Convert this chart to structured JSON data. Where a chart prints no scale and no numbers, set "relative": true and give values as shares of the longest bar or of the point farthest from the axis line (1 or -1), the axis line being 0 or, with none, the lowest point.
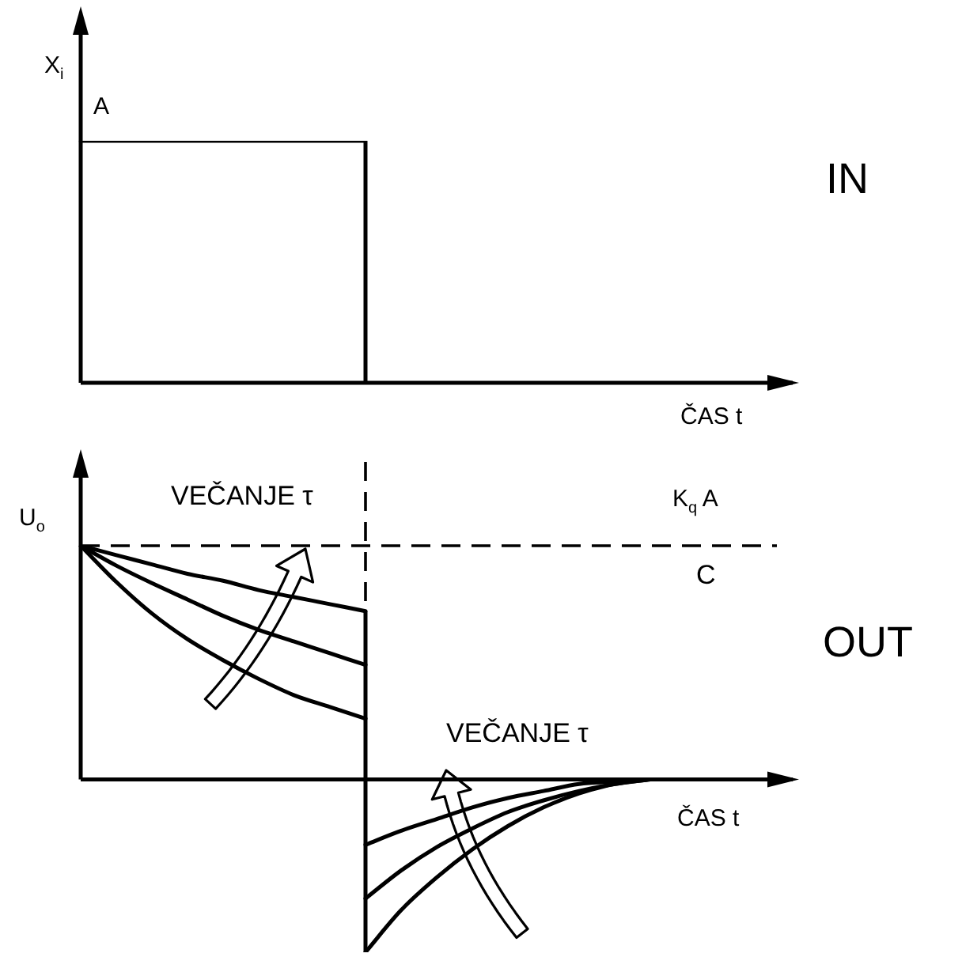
{
  "chart_data": [
    {
      "type": "step",
      "xlabel": "ČAS t",
      "ylabel": "X$_{i}$",
      "relative": true,
      "marker": "none",
      "categories": [
        null,
        null,
        null,
        null,
        null,
        null,
        null,
        null,
        null,
        null,
        null,
        null,
        null,
        null,
        null,
        null,
        null,
        null,
        null,
        null,
        null
      ],
      "series": [
        {
          "color": "#000000",
          "values": [
            1,
            1,
            1,
            1,
            1,
            1,
            1,
            1,
            0,
            null,
            null,
            null,
            null,
            null,
            null,
            null,
            null,
            null,
            null,
            null,
            null
          ]
        }
      ],
      "annotations": [
        "A",
        "IN"
      ]
    },
    {
      "type": "line",
      "xlabel": "ČAS t",
      "ylabel": "U$_{o}$",
      "relative": true,
      "marker": "none",
      "categories": [
        null,
        null,
        null,
        null,
        null,
        null,
        null,
        null,
        null,
        null,
        null,
        null,
        null,
        null,
        null,
        null,
        null,
        null,
        null,
        null,
        null
      ],
      "series": [
        {
          "color": "#000000",
          "values": [
            1,
            0.96,
            0.92,
            0.88,
            0.85,
            0.81,
            0.78,
            0.75,
            0.72,
            null,
            null,
            null,
            null,
            null,
            null,
            null,
            null,
            null,
            null,
            null,
            null
          ]
        },
        {
          "color": "#000000",
          "values": [
            1,
            0.915,
            0.84,
            0.77,
            0.7,
            0.64,
            0.59,
            0.54,
            0.49,
            null,
            null,
            null,
            null,
            null,
            null,
            null,
            null,
            null,
            null,
            null,
            null
          ]
        },
        {
          "color": "#000000",
          "values": [
            1,
            0.845,
            0.71,
            0.6,
            0.51,
            0.43,
            0.36,
            0.31,
            0.26,
            null,
            null,
            null,
            null,
            null,
            null,
            null,
            null,
            null,
            null,
            null,
            null
          ]
        },
        {
          "color": "#000000",
          "values": [
            null,
            null,
            null,
            null,
            null,
            null,
            null,
            null,
            -0.28,
            -0.22,
            -0.17,
            -0.12,
            -0.08,
            -0.05,
            -0.02,
            -0.01,
            0,
            null,
            null,
            null,
            null
          ]
        },
        {
          "color": "#000000",
          "values": [
            null,
            null,
            null,
            null,
            null,
            null,
            null,
            null,
            -0.51,
            -0.39,
            -0.29,
            -0.21,
            -0.14,
            -0.09,
            -0.05,
            -0.02,
            0,
            null,
            null,
            null,
            null
          ]
        },
        {
          "color": "#000000",
          "values": [
            null,
            null,
            null,
            null,
            null,
            null,
            null,
            null,
            -0.74,
            -0.56,
            -0.42,
            -0.3,
            -0.2,
            -0.12,
            -0.06,
            -0.02,
            0,
            null,
            null,
            null,
            null
          ]
        }
      ],
      "ref_lines": [
        {
          "axis": "y",
          "value": 1,
          "label": "K$_{q}$ A",
          "line_style": "dashed"
        },
        {
          "axis": "x",
          "line_style": "dashed"
        }
      ],
      "annotations": [
        "VEČANJE τ",
        "C",
        "VEČANJE τ",
        "OUT"
      ]
    }
  ]
}
